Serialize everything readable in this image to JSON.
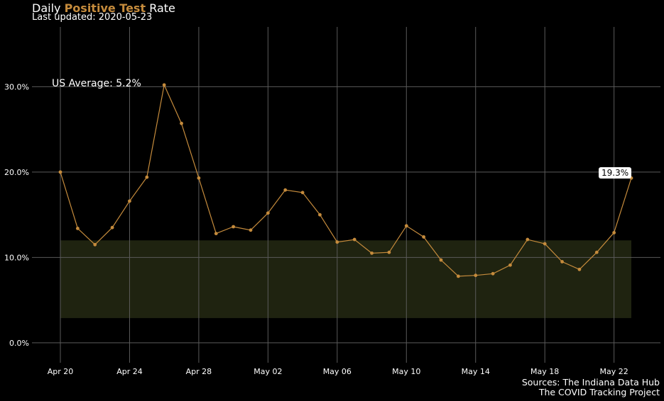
{
  "title": {
    "prefix": "Daily ",
    "highlight": "Positive Test",
    "suffix": " Rate"
  },
  "subtitle": "Last updated: 2020-05-23",
  "annotation": "US Average: 5.2%",
  "end_label": "19.3%",
  "caption": [
    "Sources: The Indiana Data Hub",
    "The COVID Tracking Project"
  ],
  "colors": {
    "background": "#000000",
    "line": "#c58b3c",
    "band": "#1f2310",
    "grid": "#5a5a5a"
  },
  "chart_data": {
    "type": "line",
    "xlabel": "",
    "ylabel": "",
    "grid": true,
    "x_start": "2020-04-20",
    "x": [
      "Apr 20",
      "Apr 21",
      "Apr 22",
      "Apr 23",
      "Apr 24",
      "Apr 25",
      "Apr 26",
      "Apr 27",
      "Apr 28",
      "Apr 29",
      "Apr 30",
      "May 01",
      "May 02",
      "May 03",
      "May 04",
      "May 05",
      "May 06",
      "May 07",
      "May 08",
      "May 09",
      "May 10",
      "May 11",
      "May 12",
      "May 13",
      "May 14",
      "May 15",
      "May 16",
      "May 17",
      "May 18",
      "May 19",
      "May 20",
      "May 21",
      "May 22",
      "May 23"
    ],
    "values": [
      20.0,
      13.4,
      11.5,
      13.5,
      16.6,
      19.4,
      30.2,
      25.7,
      19.3,
      12.8,
      13.6,
      13.2,
      15.2,
      17.9,
      17.6,
      15.0,
      11.8,
      12.1,
      10.5,
      10.6,
      13.7,
      12.4,
      9.7,
      7.8,
      7.9,
      8.1,
      9.1,
      12.1,
      11.6,
      9.5,
      8.6,
      10.6,
      12.9,
      19.3
    ],
    "x_ticks": [
      "Apr 20",
      "Apr 24",
      "Apr 28",
      "May 02",
      "May 06",
      "May 10",
      "May 14",
      "May 18",
      "May 22"
    ],
    "y_ticks": [
      "0.0%",
      "10.0%",
      "20.0%",
      "30.0%"
    ],
    "ylim": [
      -2.0,
      37.0
    ],
    "band": {
      "ymin": 2.9,
      "ymax": 12.0
    }
  }
}
